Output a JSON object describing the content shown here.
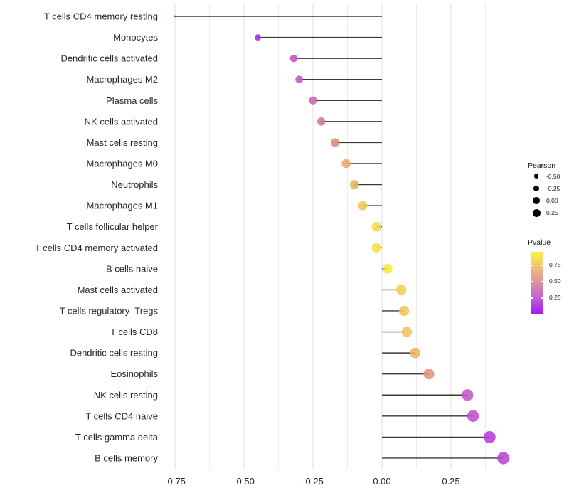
{
  "figure": {
    "background": "#ffffff",
    "description": "Horizontal lollipop chart of immune cell type correlations (Pearson) with p-value color scale"
  },
  "chart_data": {
    "type": "scatter",
    "subtype": "lollipop",
    "orientation": "horizontal",
    "baseline": 0,
    "grid": true,
    "legend_position": "right",
    "xlabel": "",
    "ylabel": "",
    "xlim": [
      -0.85,
      0.47
    ],
    "x_ticks": [
      -0.75,
      -0.5,
      -0.25,
      0,
      0.25
    ],
    "x_tick_labels": [
      "-0.75",
      "-0.50",
      "-0.25",
      "0.00",
      "0.25"
    ],
    "x_minor_gridlines": [
      -0.625,
      -0.375,
      -0.125,
      0.125,
      0.375
    ],
    "categories": [
      "T cells CD4 memory resting",
      "Monocytes",
      "Dendritic cells activated",
      "Macrophages M2",
      "Plasma cells",
      "NK cells activated",
      "Mast cells resting",
      "Macrophages M0",
      "Neutrophils",
      "Macrophages M1",
      "T cells follicular helper",
      "T cells CD4 memory activated",
      "B cells naive",
      "Mast cells activated",
      "T cells regulatory  Tregs",
      "T cells CD8",
      "Dendritic cells resting",
      "Eosinophils",
      "NK cells resting",
      "T cells CD4 naive",
      "T cells gamma delta",
      "B cells memory"
    ],
    "series": [
      {
        "name": "Pearson",
        "values": [
          -0.75,
          -0.45,
          -0.32,
          -0.3,
          -0.25,
          -0.22,
          -0.17,
          -0.13,
          -0.1,
          -0.07,
          -0.02,
          -0.02,
          0.02,
          0.07,
          0.08,
          0.09,
          0.12,
          0.17,
          0.31,
          0.33,
          0.39,
          0.44
        ]
      },
      {
        "name": "Pvalue",
        "values": [
          0.01,
          0.06,
          0.25,
          0.27,
          0.34,
          0.41,
          0.51,
          0.63,
          0.67,
          0.76,
          0.87,
          0.88,
          0.93,
          0.78,
          0.76,
          0.73,
          0.65,
          0.5,
          0.24,
          0.21,
          0.16,
          0.14
        ]
      }
    ],
    "point_colors": [
      "#9717E8",
      "#A232DE",
      "#BF52CC",
      "#C258C6",
      "#CB66AE",
      "#D57694",
      "#DE8B79",
      "#E8A767",
      "#EBB05F",
      "#F1C457",
      "#F6DC4E",
      "#F7DF4B",
      "#F7EC3E",
      "#F2CE54",
      "#F1C75A",
      "#F0C35E",
      "#EDB562",
      "#E29381",
      "#C855CD",
      "#C44FD0",
      "#B83DD8",
      "#BB44D6"
    ],
    "stem_color": "#3a3a3a",
    "gridline_color_major": "#e2e2e2",
    "gridline_color_minor": "#ededed",
    "axis_text_color": "#262626"
  },
  "legends": {
    "size": {
      "title": "Pearson",
      "entries": [
        "-0.50",
        "-0.25",
        "0.00",
        "0.25"
      ],
      "dot_color": "#000000"
    },
    "color": {
      "title": "Pvalue",
      "tick_labels": [
        "0.75",
        "0.50",
        "0.25"
      ],
      "gradient_top_to_bottom": [
        "#FBF143",
        "#F2C96E",
        "#DE95A0",
        "#C562CF",
        "#A018F5"
      ],
      "value_range": [
        0.0,
        0.95
      ]
    }
  }
}
